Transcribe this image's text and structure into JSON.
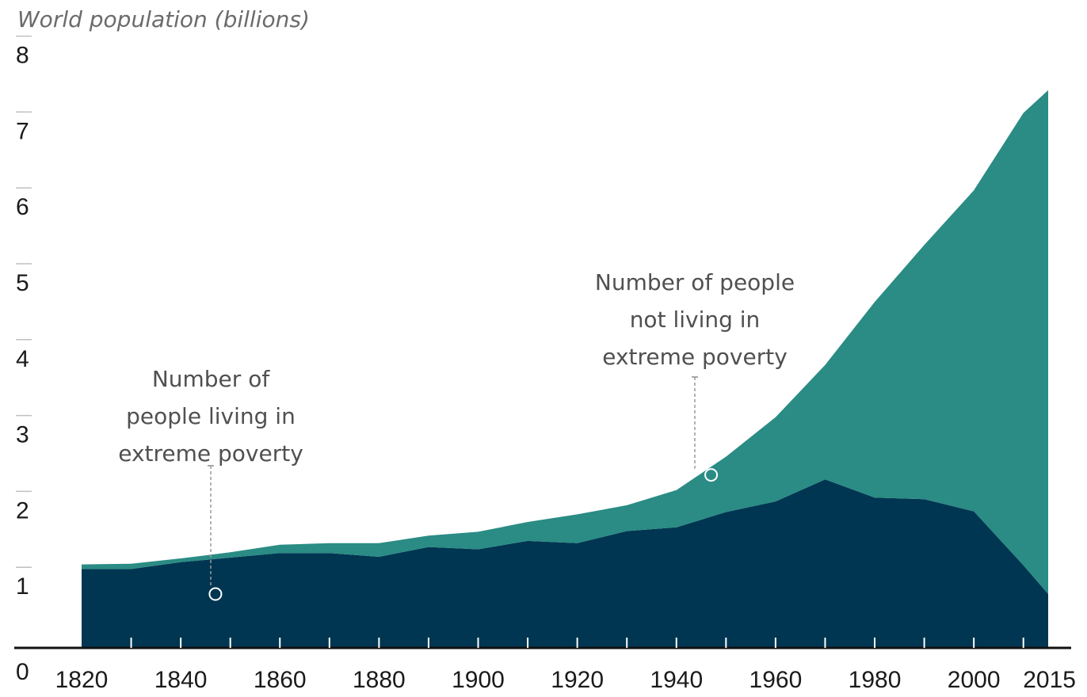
{
  "chart_data": {
    "type": "area",
    "title": "World population (billions)",
    "xlabel": "",
    "ylabel": "",
    "xlim": [
      1820,
      2015
    ],
    "ylim": [
      0,
      8
    ],
    "y_ticks": [
      "0",
      "1",
      "2",
      "3",
      "4",
      "5",
      "6",
      "7",
      "8"
    ],
    "x_ticks": [
      "1820",
      "1840",
      "1860",
      "1880",
      "1900",
      "1920",
      "1940",
      "1960",
      "1980",
      "2000",
      "2015"
    ],
    "x": [
      1820,
      1830,
      1840,
      1850,
      1860,
      1870,
      1880,
      1890,
      1900,
      1910,
      1920,
      1930,
      1940,
      1950,
      1960,
      1970,
      1980,
      1990,
      2000,
      2010,
      2015
    ],
    "stacked": true,
    "series": [
      {
        "name": "",
        "color": "#003652",
        "values": [
          1.04,
          1.04,
          1.13,
          1.19,
          1.25,
          1.25,
          1.2,
          1.33,
          1.3,
          1.41,
          1.38,
          1.54,
          1.59,
          1.79,
          1.93,
          2.22,
          1.98,
          1.96,
          1.8,
          1.09,
          0.71
        ]
      },
      {
        "name": "",
        "color": "#2a8c84",
        "values": [
          0.06,
          0.07,
          0.05,
          0.07,
          0.11,
          0.13,
          0.18,
          0.15,
          0.23,
          0.25,
          0.38,
          0.34,
          0.49,
          0.73,
          1.11,
          1.51,
          2.58,
          3.35,
          4.23,
          5.96,
          6.64
        ]
      }
    ],
    "annotations": [
      {
        "lines": [
          "Number of",
          "people living in",
          "extreme poverty"
        ],
        "x": 1847,
        "y": 0.71
      },
      {
        "lines": [
          "Number of people",
          "not living in",
          "extreme poverty"
        ],
        "x": 1947,
        "y": 2.28
      }
    ],
    "grid": false,
    "legend": "none"
  }
}
